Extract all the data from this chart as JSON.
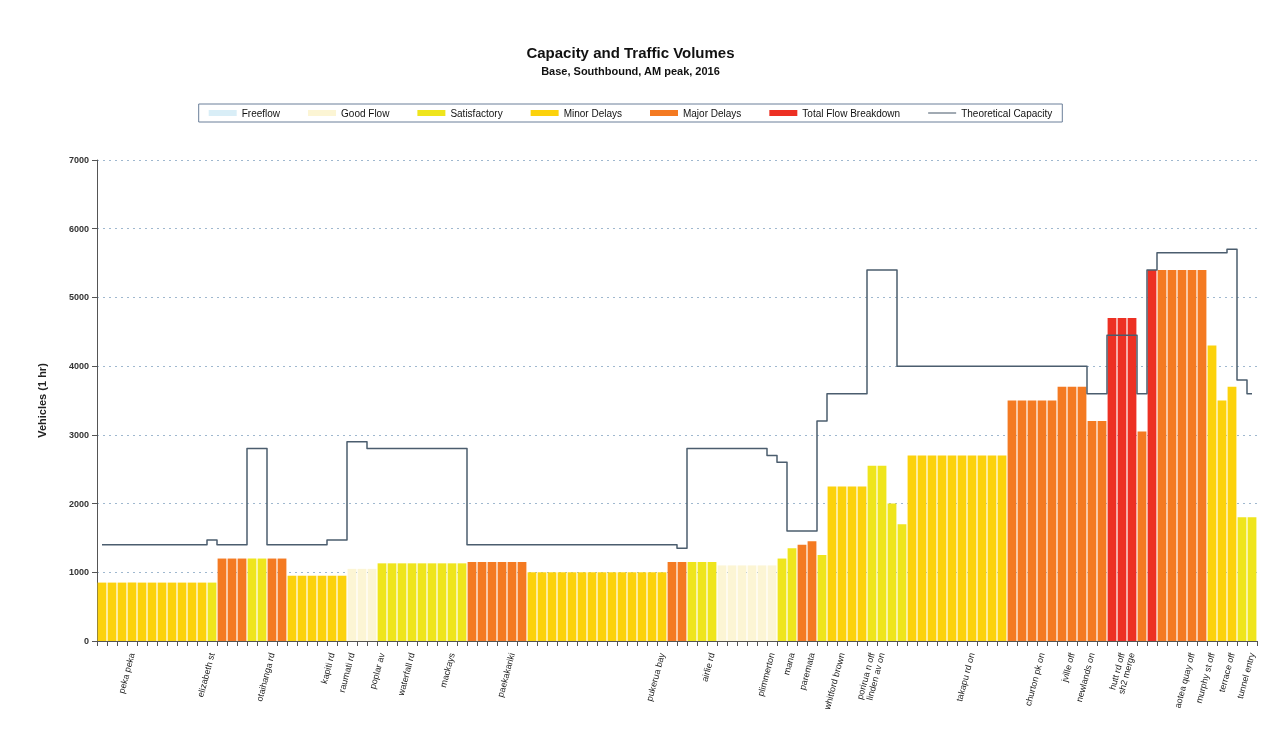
{
  "chart_data": {
    "type": "bar",
    "title": "Capacity and Traffic Volumes",
    "subtitle": "Base, Southbound, AM peak, 2016",
    "ylabel": "Vehicles (1 hr)",
    "categories": [
      null,
      null,
      null,
      "peka peka",
      null,
      null,
      null,
      null,
      null,
      null,
      null,
      "elizabeth st",
      null,
      null,
      null,
      null,
      null,
      "otaihanga rd",
      null,
      null,
      null,
      null,
      null,
      "kapiti rd",
      null,
      "raumati rd",
      null,
      null,
      "poplar av",
      null,
      null,
      "waterfall rd",
      null,
      null,
      null,
      "mackays",
      null,
      null,
      null,
      null,
      null,
      "paekakariki",
      null,
      null,
      null,
      null,
      null,
      null,
      null,
      null,
      null,
      null,
      null,
      null,
      null,
      null,
      "pukerua bay",
      null,
      null,
      null,
      null,
      "airlie rd",
      null,
      null,
      null,
      null,
      null,
      "plimmerton",
      null,
      "mana",
      null,
      "paremata",
      null,
      null,
      "whitford brown",
      null,
      null,
      "porirua n off",
      "linden av on",
      null,
      null,
      null,
      null,
      null,
      null,
      null,
      null,
      "takapu rd on",
      null,
      null,
      null,
      null,
      null,
      null,
      "churton pk on",
      null,
      null,
      "jville off",
      null,
      "newlands on",
      null,
      null,
      "hutt rd off",
      "sh2 merge",
      null,
      null,
      null,
      null,
      null,
      "aotea quay off",
      null,
      "murphy st off",
      null,
      "terrace off",
      null,
      "tunnel entry"
    ],
    "ylim": [
      0,
      7000
    ],
    "yticks": [
      0,
      1000,
      2000,
      3000,
      4000,
      5000,
      6000,
      7000
    ],
    "grid": "y",
    "legend": "top",
    "series": [
      {
        "name": "Freeflow",
        "color": "#d9eef7",
        "values": [
          null,
          null,
          null,
          null,
          null,
          null,
          null,
          null,
          null,
          null,
          null,
          null,
          null,
          null,
          null,
          null,
          null,
          null,
          null,
          null,
          null,
          null,
          null,
          null,
          null,
          null,
          null,
          null,
          null,
          null,
          null,
          null,
          null,
          null,
          null,
          null,
          null,
          null,
          null,
          null,
          null,
          null,
          null,
          null,
          null,
          null,
          null,
          null,
          null,
          null,
          null,
          null,
          null,
          null,
          null,
          null,
          null,
          null,
          null,
          null,
          null,
          null,
          null,
          null,
          null,
          null,
          null,
          null,
          null,
          null,
          null,
          null,
          null,
          null,
          null,
          null,
          null,
          null,
          null,
          null,
          null,
          null,
          null,
          null,
          null,
          null,
          null,
          null,
          null,
          null,
          null,
          null,
          null,
          null,
          null,
          null,
          null,
          null,
          null,
          null,
          null,
          null,
          null,
          null,
          null,
          null,
          null,
          null,
          null,
          null,
          null,
          null,
          null,
          null,
          null,
          null
        ]
      },
      {
        "name": "Good Flow",
        "color": "#fcf5d4",
        "values": [
          null,
          null,
          null,
          null,
          null,
          null,
          null,
          null,
          null,
          null,
          null,
          null,
          null,
          null,
          null,
          null,
          null,
          null,
          null,
          null,
          null,
          null,
          null,
          null,
          null,
          1050,
          1050,
          1050,
          null,
          null,
          null,
          null,
          null,
          null,
          null,
          null,
          null,
          null,
          null,
          null,
          null,
          null,
          null,
          null,
          null,
          null,
          null,
          null,
          null,
          null,
          null,
          null,
          null,
          null,
          null,
          null,
          null,
          null,
          null,
          null,
          null,
          null,
          1100,
          1100,
          1100,
          1100,
          1100,
          1100,
          null,
          null,
          null,
          null,
          null,
          null,
          null,
          null,
          null,
          null,
          null,
          null,
          null,
          null,
          null,
          null,
          null,
          null,
          null,
          null,
          null,
          null,
          null,
          null,
          null,
          null,
          null,
          null,
          null,
          null,
          null,
          null,
          null,
          null,
          null,
          null,
          null,
          null,
          null,
          null,
          null,
          null,
          null,
          null,
          null,
          null,
          null,
          null
        ]
      },
      {
        "name": "Satisfactory",
        "color": "#efe51d",
        "values": [
          null,
          null,
          null,
          null,
          null,
          null,
          null,
          null,
          null,
          null,
          null,
          850,
          null,
          null,
          null,
          1200,
          1200,
          null,
          null,
          null,
          null,
          null,
          null,
          null,
          null,
          null,
          null,
          null,
          1130,
          1130,
          1130,
          1130,
          1130,
          1130,
          1130,
          1130,
          1130,
          null,
          null,
          null,
          null,
          null,
          null,
          null,
          null,
          null,
          null,
          null,
          null,
          null,
          null,
          null,
          null,
          null,
          null,
          null,
          null,
          null,
          null,
          1150,
          1150,
          1150,
          null,
          null,
          null,
          null,
          null,
          null,
          1200,
          1350,
          null,
          null,
          1250,
          null,
          null,
          null,
          null,
          2550,
          2550,
          2000,
          1700,
          null,
          null,
          null,
          null,
          null,
          null,
          null,
          null,
          null,
          null,
          null,
          null,
          null,
          null,
          null,
          null,
          null,
          null,
          null,
          null,
          null,
          null,
          null,
          null,
          null,
          null,
          null,
          null,
          null,
          null,
          null,
          null,
          null,
          1800,
          1800
        ]
      },
      {
        "name": "Minor Delays",
        "color": "#fcd20c",
        "values": [
          850,
          850,
          850,
          850,
          850,
          850,
          850,
          850,
          850,
          850,
          850,
          null,
          null,
          null,
          null,
          null,
          null,
          null,
          null,
          950,
          950,
          950,
          950,
          950,
          950,
          null,
          null,
          null,
          null,
          null,
          null,
          null,
          null,
          null,
          null,
          null,
          null,
          null,
          null,
          null,
          null,
          null,
          null,
          1000,
          1000,
          1000,
          1000,
          1000,
          1000,
          1000,
          1000,
          1000,
          1000,
          1000,
          1000,
          1000,
          1000,
          null,
          null,
          null,
          null,
          null,
          null,
          null,
          null,
          null,
          null,
          null,
          null,
          null,
          null,
          null,
          null,
          2250,
          2250,
          2250,
          2250,
          null,
          null,
          null,
          null,
          2700,
          2700,
          2700,
          2700,
          2700,
          2700,
          2700,
          2700,
          2700,
          2700,
          null,
          null,
          null,
          null,
          null,
          null,
          null,
          null,
          null,
          null,
          null,
          null,
          null,
          null,
          null,
          null,
          null,
          null,
          null,
          null,
          4300,
          3500,
          3700,
          null,
          null
        ]
      },
      {
        "name": "Major Delays",
        "color": "#f47a22",
        "values": [
          null,
          null,
          null,
          null,
          null,
          null,
          null,
          null,
          null,
          null,
          null,
          null,
          1200,
          1200,
          1200,
          null,
          null,
          1200,
          1200,
          null,
          null,
          null,
          null,
          null,
          null,
          null,
          null,
          null,
          null,
          null,
          null,
          null,
          null,
          null,
          null,
          null,
          null,
          1150,
          1150,
          1150,
          1150,
          1150,
          1150,
          null,
          null,
          null,
          null,
          null,
          null,
          null,
          null,
          null,
          null,
          null,
          null,
          null,
          null,
          1150,
          1150,
          null,
          null,
          null,
          null,
          null,
          null,
          null,
          null,
          null,
          null,
          null,
          1400,
          1450,
          null,
          null,
          null,
          null,
          null,
          null,
          null,
          null,
          null,
          null,
          null,
          null,
          null,
          null,
          null,
          null,
          null,
          null,
          null,
          3500,
          3500,
          3500,
          3500,
          3500,
          3700,
          3700,
          3700,
          3200,
          3200,
          null,
          null,
          null,
          3050,
          null,
          5400,
          5400,
          5400,
          5400,
          5400,
          null,
          null,
          null,
          null,
          null
        ]
      },
      {
        "name": "Total Flow Breakdown",
        "color": "#ed3023",
        "values": [
          null,
          null,
          null,
          null,
          null,
          null,
          null,
          null,
          null,
          null,
          null,
          null,
          null,
          null,
          null,
          null,
          null,
          null,
          null,
          null,
          null,
          null,
          null,
          null,
          null,
          null,
          null,
          null,
          null,
          null,
          null,
          null,
          null,
          null,
          null,
          null,
          null,
          null,
          null,
          null,
          null,
          null,
          null,
          null,
          null,
          null,
          null,
          null,
          null,
          null,
          null,
          null,
          null,
          null,
          null,
          null,
          null,
          null,
          null,
          null,
          null,
          null,
          null,
          null,
          null,
          null,
          null,
          null,
          null,
          null,
          null,
          null,
          null,
          null,
          null,
          null,
          null,
          null,
          null,
          null,
          null,
          null,
          null,
          null,
          null,
          null,
          null,
          null,
          null,
          null,
          null,
          null,
          null,
          null,
          null,
          null,
          null,
          null,
          null,
          null,
          null,
          4700,
          4700,
          4700,
          null,
          5400,
          null,
          null,
          null,
          null,
          null,
          null,
          null,
          null,
          null,
          null
        ]
      },
      {
        "name": "Theoretical Capacity",
        "type": "step",
        "color": "#4b5d6e",
        "values": [
          1400,
          1400,
          1400,
          1400,
          1400,
          1400,
          1400,
          1400,
          1400,
          1400,
          1400,
          1470,
          1400,
          1400,
          1400,
          2800,
          2800,
          1400,
          1400,
          1400,
          1400,
          1400,
          1400,
          1470,
          1470,
          2900,
          2900,
          2800,
          2800,
          2800,
          2800,
          2800,
          2800,
          2800,
          2800,
          2800,
          2800,
          1400,
          1400,
          1400,
          1400,
          1400,
          1400,
          1400,
          1400,
          1400,
          1400,
          1400,
          1400,
          1400,
          1400,
          1400,
          1400,
          1400,
          1400,
          1400,
          1400,
          1400,
          1350,
          2800,
          2800,
          2800,
          2800,
          2800,
          2800,
          2800,
          2800,
          2700,
          2600,
          1600,
          1600,
          1600,
          3200,
          3600,
          3600,
          3600,
          3600,
          5400,
          5400,
          5400,
          4000,
          4000,
          4000,
          4000,
          4000,
          4000,
          4000,
          4000,
          4000,
          4000,
          4000,
          4000,
          4000,
          4000,
          4000,
          4000,
          4000,
          4000,
          4000,
          3600,
          3600,
          4450,
          4450,
          4450,
          3600,
          5400,
          5650,
          5650,
          5650,
          5650,
          5650,
          5650,
          5650,
          5700,
          3800,
          3600
        ]
      }
    ]
  }
}
